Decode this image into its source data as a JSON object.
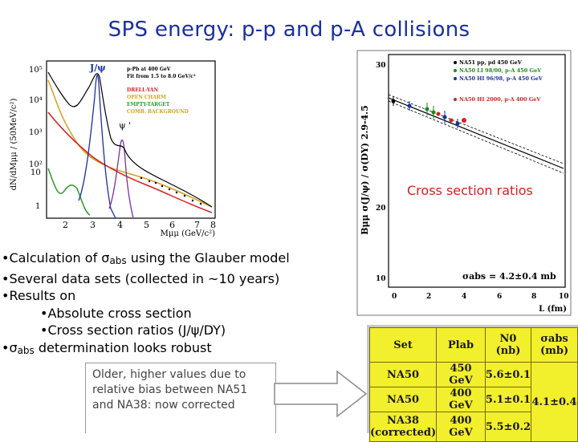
{
  "slide": {
    "title": "SPS energy:  p-p and p-A collisions"
  },
  "left_plot": {
    "y_label": "dN/dMμμ / (50MeV/c²)",
    "x_label": "Mμμ (GeV/c²)",
    "y_ticks": [
      "10⁵",
      "10⁴",
      "10³",
      "10²",
      "10",
      "1"
    ],
    "x_ticks": [
      "2",
      "3",
      "4",
      "5",
      "6",
      "7",
      "8"
    ],
    "peak_jpsi": "J/ψ",
    "peak_psiprime": "ψ '",
    "legend": [
      {
        "text": "p-Pb at 400 GeV",
        "color": "#000000"
      },
      {
        "text": "Fit from 1.5 to 8.0 GeV/c²",
        "color": "#000000"
      },
      {
        "text": "DRELL-YAN",
        "color": "#d62020"
      },
      {
        "text": "OPEN CHARM",
        "color": "#d4a020"
      },
      {
        "text": "EMPTY-TARGET",
        "color": "#2a9a2a"
      },
      {
        "text": "COMB. BACKGROUND",
        "color": "#d4a020"
      }
    ]
  },
  "right_plot": {
    "y_label": "Bμμ σ(J/ψ) / σ(DY) 2.9-4.5",
    "x_label": "L (fm)",
    "y_ticks": [
      "30",
      "20",
      "10"
    ],
    "x_ticks": [
      "0",
      "2",
      "4",
      "6",
      "8",
      "10"
    ],
    "legend": [
      {
        "text": "NA51 pp, pd 450 GeV",
        "color": "#000000"
      },
      {
        "text": "NA50 LI 98/00, p-A 450 GeV",
        "color": "#1a8a1a"
      },
      {
        "text": "NA50 HI 96/98, p-A 450 GeV",
        "color": "#1a2fa0"
      },
      {
        "text": "NA50 HI 2000, p-A 400 GeV",
        "color": "#d42020"
      }
    ],
    "sigma_text": "σabs = 4.2±0.4 mb",
    "overlay_label": "Cross section ratios"
  },
  "bullets": [
    {
      "prefix": "•Calculation of ",
      "sigma": "σ",
      "sub": "abs",
      "suffix": " using the Glauber model"
    },
    {
      "text": "•Several data sets (collected in ~10 years)"
    },
    {
      "text": "•Results on"
    },
    {
      "text": "•Absolute cross section",
      "indent": true
    },
    {
      "text": "•Cross section ratios (J/ψ/DY)",
      "indent": true
    },
    {
      "prefix": "•",
      "sigma": "σ",
      "sub": "abs",
      "suffix": " determination looks robust"
    }
  ],
  "note": "Older, higher values due to relative bias between NA51 and NA38: now corrected",
  "table": {
    "headers": [
      "Set",
      "Plab",
      "N0 (nb)",
      "σabs (mb)"
    ],
    "rows": [
      [
        "NA50",
        "450 GeV",
        "5.6±0.1"
      ],
      [
        "NA50",
        "400 GeV",
        "5.1±0.1"
      ],
      [
        "NA38 (corrected)",
        "400 GeV",
        "5.5±0.2"
      ]
    ],
    "sigma_value": "4.1±0.4"
  },
  "colors": {
    "title": "#1a2fa0",
    "table_bg": "#f2ef2c",
    "cs_label": "#d42020"
  }
}
